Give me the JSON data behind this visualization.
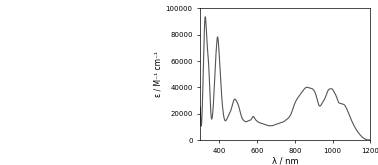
{
  "title": "",
  "xlabel": "λ / nm",
  "ylabel": "ε / M⁻¹ cm⁻¹",
  "xlim": [
    300,
    1200
  ],
  "ylim": [
    0,
    100000
  ],
  "yticks": [
    0,
    20000,
    40000,
    60000,
    80000,
    100000
  ],
  "ytick_labels": [
    "0",
    "20000",
    "40000",
    "60000",
    "80000",
    "100000"
  ],
  "xticks": [
    400,
    600,
    800,
    1000,
    1200
  ],
  "line_color": "#555555",
  "bg_color": "#ffffff",
  "curve_x": [
    300,
    315,
    325,
    335,
    345,
    355,
    360,
    365,
    370,
    375,
    380,
    385,
    390,
    395,
    400,
    410,
    420,
    430,
    440,
    450,
    460,
    470,
    480,
    490,
    500,
    510,
    520,
    530,
    540,
    550,
    560,
    570,
    580,
    590,
    600,
    610,
    620,
    630,
    640,
    650,
    660,
    670,
    680,
    690,
    700,
    710,
    720,
    730,
    740,
    750,
    760,
    770,
    780,
    790,
    800,
    820,
    840,
    860,
    880,
    900,
    910,
    920,
    930,
    940,
    950,
    960,
    970,
    980,
    990,
    1000,
    1010,
    1020,
    1030,
    1040,
    1050,
    1060,
    1080,
    1100,
    1130,
    1160,
    1200
  ],
  "curve_y": [
    25000,
    50000,
    93000,
    75000,
    55000,
    22000,
    16000,
    20000,
    30000,
    45000,
    60000,
    70000,
    78000,
    75000,
    65000,
    40000,
    22000,
    15000,
    16000,
    19000,
    22000,
    27000,
    31000,
    30000,
    27000,
    22000,
    17000,
    15000,
    14000,
    14500,
    15000,
    16000,
    18000,
    16000,
    14500,
    13500,
    13000,
    12500,
    12000,
    11500,
    11000,
    11000,
    11000,
    11500,
    12000,
    12500,
    13000,
    13500,
    14000,
    15000,
    16000,
    17500,
    20000,
    24000,
    28000,
    33000,
    37000,
    40000,
    39500,
    38000,
    35000,
    30000,
    26000,
    27000,
    29500,
    32000,
    36000,
    38500,
    39000,
    38500,
    36000,
    33000,
    29000,
    28000,
    27500,
    27000,
    22000,
    15000,
    7000,
    2000,
    500
  ]
}
